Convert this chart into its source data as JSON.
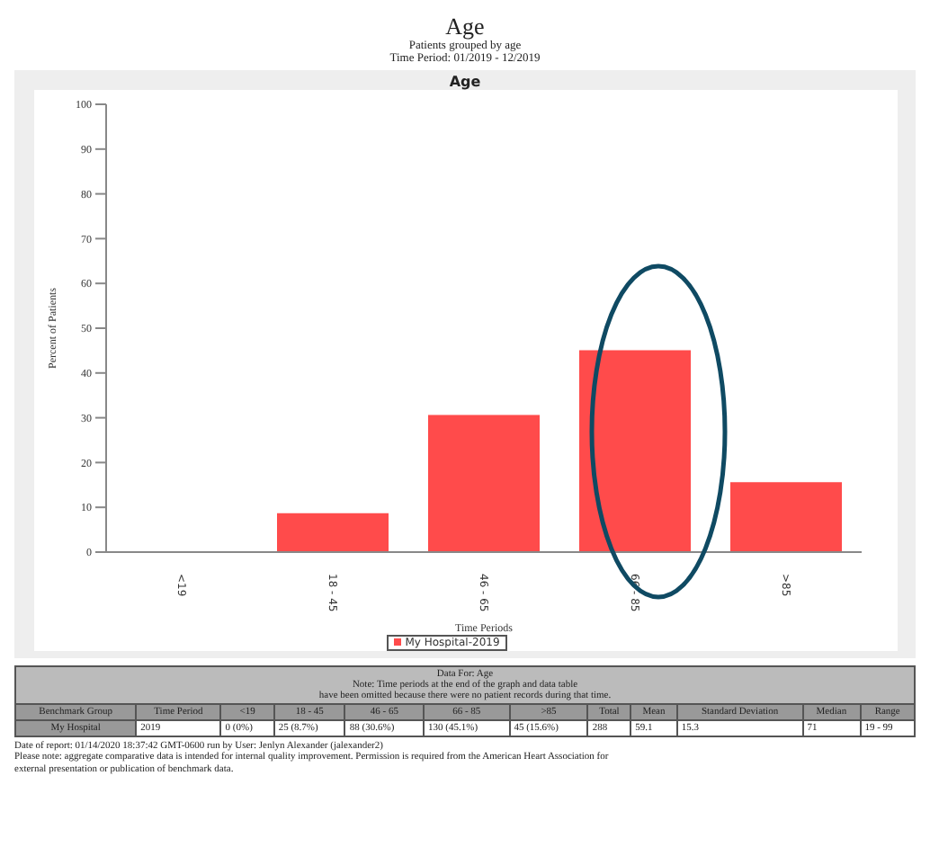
{
  "chart_data": {
    "type": "bar",
    "title": "Age",
    "subtitle": "Patients grouped by age\nTime Period: 01/2019 - 12/2019",
    "xlabel": "Time Periods",
    "ylabel": "Percent of Patients",
    "categories": [
      "<19",
      "18 - 45",
      "46 - 65",
      "66 - 85",
      ">85"
    ],
    "series": [
      {
        "name": "My Hospital-2019",
        "color": "#ff4b4b",
        "values": [
          0,
          8.7,
          30.6,
          45.1,
          15.6
        ]
      }
    ],
    "ylim": [
      0,
      100
    ],
    "yticks": [
      0,
      10,
      20,
      30,
      40,
      50,
      60,
      70,
      80,
      90,
      100
    ],
    "grid": false,
    "legend": "bottom",
    "annotations": [
      "Age",
      "Data For: Age",
      "Note: Time periods at the end of the graph and data table",
      "have been omitted because there were no patient records during that time.",
      "Benchmark Group",
      "Time Period",
      "My Hospital",
      "2019",
      "Total",
      "288",
      "Mean",
      "59.1",
      "Standard Deviation",
      "15.3",
      "Median",
      "71",
      "Range",
      "19 - 99",
      "Date of report: 01/14/2020 18:37:42 GMT-0600 run by User: Jenlyn Alexander (jalexander2)",
      "Please note: aggregate comparative data is intended for internal quality improvement. Permission is required from the American Heart Association for",
      "external presentation or publication of benchmark data.",
      "0 (0%)",
      "25 (8.7%)",
      "88 (30.6%)",
      "130 (45.1%)",
      "45 (15.6%)"
    ]
  }
}
